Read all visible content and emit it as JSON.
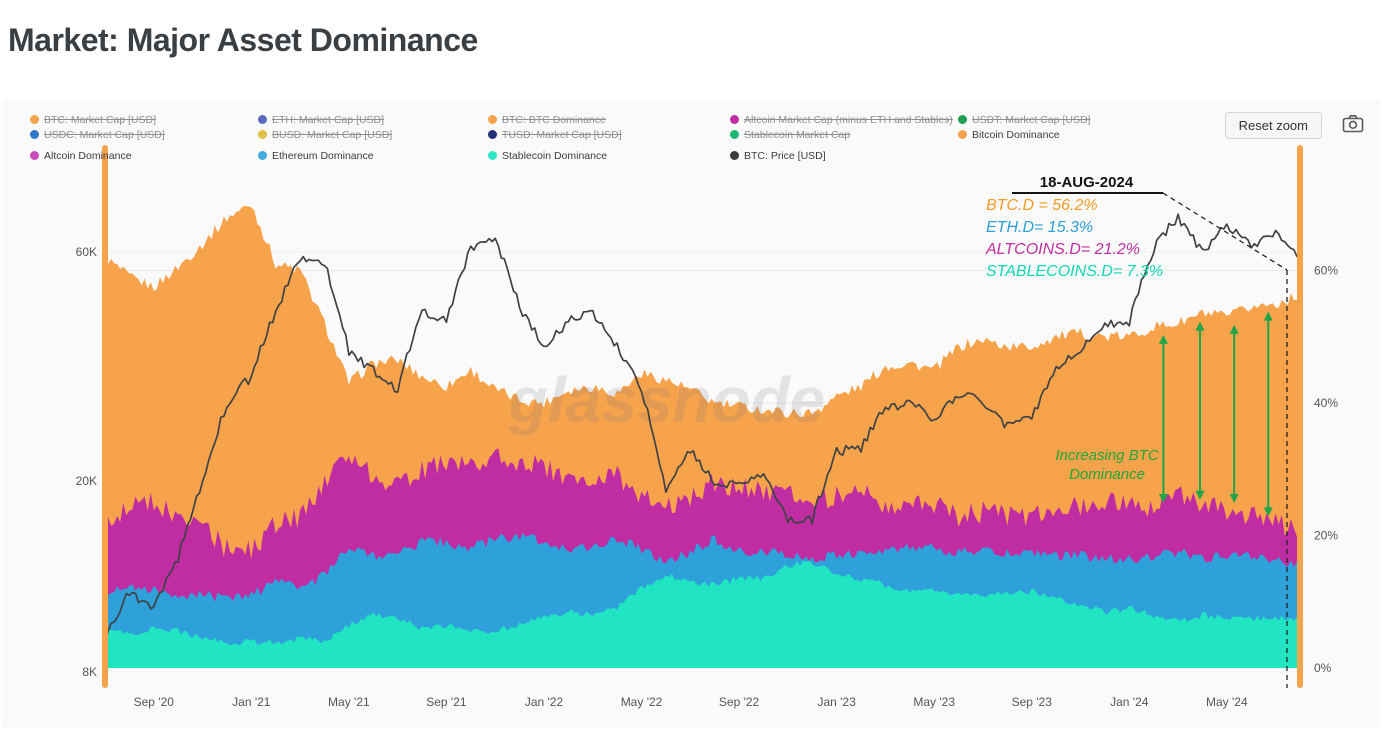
{
  "page": {
    "title": "Market: Major Asset Dominance"
  },
  "toolbar": {
    "reset_zoom_label": "Reset zoom",
    "camera_icon": "camera-export-icon"
  },
  "watermark": "glassnode",
  "legend": {
    "items": [
      {
        "label": "BTC: Market Cap [USD]",
        "color": "#F7A34C",
        "disabled": true,
        "row": 0,
        "col": 0
      },
      {
        "label": "ETH: Market Cap [USD]",
        "color": "#5B6ABF",
        "disabled": true,
        "row": 0,
        "col": 1
      },
      {
        "label": "BTC: BTC Dominance",
        "color": "#F7A34C",
        "disabled": true,
        "row": 0,
        "col": 2
      },
      {
        "label": "Altcoin Market Cap (minus ETH and Stables)",
        "color": "#C02DA2",
        "disabled": true,
        "row": 0,
        "col": 3
      },
      {
        "label": "USDT: Market Cap [USD]",
        "color": "#1F9E54",
        "disabled": true,
        "row": 0,
        "col": 4
      },
      {
        "label": "USDC: Market Cap [USD]",
        "color": "#2D78C8",
        "disabled": true,
        "row": 1,
        "col": 0
      },
      {
        "label": "BUSD: Market Cap [USD]",
        "color": "#E2C044",
        "disabled": true,
        "row": 1,
        "col": 1
      },
      {
        "label": "TUSD: Market Cap [USD]",
        "color": "#232F7A",
        "disabled": true,
        "row": 1,
        "col": 2
      },
      {
        "label": "Stablecoin Market Cap",
        "color": "#1FB871",
        "disabled": true,
        "row": 1,
        "col": 3
      },
      {
        "label": "Bitcoin Dominance",
        "color": "#F7A34C",
        "disabled": false,
        "row": 1,
        "col": 4
      },
      {
        "label": "Altcoin Dominance",
        "color": "#C94CBB",
        "disabled": false,
        "row": 2,
        "col": 0
      },
      {
        "label": "Ethereum Dominance",
        "color": "#41AADF",
        "disabled": false,
        "row": 2,
        "col": 1
      },
      {
        "label": "Stablecoin Dominance",
        "color": "#2FE5C8",
        "disabled": false,
        "row": 2,
        "col": 2
      },
      {
        "label": "BTC: Price [USD]",
        "color": "#3D3D3D",
        "disabled": false,
        "row": 2,
        "col": 3
      }
    ]
  },
  "annotations": {
    "date": "18-AUG-2024",
    "metrics": [
      {
        "label": "BTC.D = 56.2%",
        "color": "#F59A23"
      },
      {
        "label": "ETH.D= 15.3%",
        "color": "#2D9FD8"
      },
      {
        "label": "ALTCOINS.D= 21.2%",
        "color": "#C02DA2"
      },
      {
        "label": "STABLECOINS.D= 7.3%",
        "color": "#12D7B5"
      }
    ],
    "note": "Increasing BTC Dominance",
    "note_color": "#23A638",
    "arrow_color": "#1EA54A"
  },
  "axes": {
    "left": {
      "labels": [
        "60K",
        "20K",
        "8K"
      ],
      "values": [
        60,
        20,
        8
      ]
    },
    "right": {
      "labels": [
        "60%",
        "40%",
        "20%",
        "0%"
      ],
      "values": [
        60,
        40,
        20,
        0
      ]
    },
    "x": {
      "labels": [
        "Sep '20",
        "Jan '21",
        "May '21",
        "Sep '21",
        "Jan '22",
        "May '22",
        "Sep '22",
        "Jan '23",
        "May '23",
        "Sep '23",
        "Jan '24",
        "May '24"
      ]
    }
  },
  "chart_data": {
    "type": "area",
    "title": "Market: Major Asset Dominance",
    "legend_position": "top",
    "grid": true,
    "y_right_axis": {
      "unit": "%",
      "range": [
        0,
        78
      ],
      "ticks": [
        0,
        20,
        40,
        60
      ]
    },
    "y_left_axis": {
      "unit": "USD",
      "scale": "log",
      "ticks_k": [
        8,
        20,
        60
      ]
    },
    "x": [
      "Jul '20",
      "Aug '20",
      "Sep '20",
      "Oct '20",
      "Nov '20",
      "Dec '20",
      "Jan '21",
      "Feb '21",
      "Mar '21",
      "Apr '21",
      "May '21",
      "Jun '21",
      "Jul '21",
      "Aug '21",
      "Sep '21",
      "Oct '21",
      "Nov '21",
      "Dec '21",
      "Jan '22",
      "Feb '22",
      "Mar '22",
      "Apr '22",
      "May '22",
      "Jun '22",
      "Jul '22",
      "Aug '22",
      "Sep '22",
      "Oct '22",
      "Nov '22",
      "Dec '22",
      "Jan '23",
      "Feb '23",
      "Mar '23",
      "Apr '23",
      "May '23",
      "Jun '23",
      "Jul '23",
      "Aug '23",
      "Sep '23",
      "Oct '23",
      "Nov '23",
      "Dec '23",
      "Jan '24",
      "Feb '24",
      "Mar '24",
      "Apr '24",
      "May '24",
      "Jun '24",
      "Jul '24",
      "Aug '24"
    ],
    "series": [
      {
        "name": "Bitcoin Dominance",
        "kind": "area",
        "unit": "%",
        "color": "#F7A34C",
        "values": [
          62,
          59,
          57.5,
          60.5,
          64,
          68,
          70,
          61,
          60,
          52,
          43,
          46,
          46.5,
          44,
          42.5,
          45,
          42,
          40.5,
          40,
          42,
          42.5,
          41.5,
          44.5,
          43.5,
          42,
          40,
          39.5,
          39,
          38.5,
          38.5,
          41,
          42.5,
          45.5,
          46,
          45,
          48.5,
          49.5,
          48.5,
          48.5,
          50,
          50.5,
          50,
          50,
          51.5,
          52,
          53.5,
          53,
          54.5,
          55,
          56.2
        ]
      },
      {
        "name": "Altcoin Dominance",
        "kind": "area",
        "unit": "%",
        "color": "#C02DA2",
        "values": [
          22,
          24,
          25,
          22.5,
          21,
          18,
          17.5,
          22,
          22.5,
          28,
          32,
          29,
          28,
          30,
          31,
          30,
          32.5,
          31,
          30.5,
          28.5,
          28,
          29,
          26,
          24.5,
          26,
          28,
          27.5,
          27,
          26,
          25,
          26,
          26.5,
          24.5,
          25,
          24.5,
          23,
          23.5,
          23,
          23,
          23.5,
          24.5,
          25,
          24.5,
          24,
          26,
          24.5,
          24,
          23,
          22,
          21.2
        ]
      },
      {
        "name": "Ethereum Dominance",
        "kind": "area",
        "unit": "%",
        "color": "#2FA1DA",
        "values": [
          11.5,
          12.5,
          12,
          11,
          11,
          10.5,
          11,
          13,
          12,
          14,
          18,
          17,
          17.5,
          19,
          19,
          18,
          19.5,
          20,
          19,
          18,
          18.5,
          19.5,
          18,
          16,
          17.5,
          19.5,
          17.5,
          17.5,
          17,
          16.5,
          17,
          17,
          17.5,
          18.5,
          18,
          17.5,
          17.5,
          17.5,
          17.5,
          17,
          17,
          16.5,
          16.5,
          17,
          17.5,
          16.5,
          17,
          17,
          16.5,
          15.3
        ]
      },
      {
        "name": "Stablecoin Dominance",
        "kind": "area",
        "unit": "%",
        "color": "#21E4C3",
        "values": [
          5.5,
          5.2,
          6,
          5.5,
          4.5,
          3.8,
          4,
          3.8,
          4.5,
          4,
          6.5,
          8,
          7.5,
          6,
          6.5,
          5.5,
          5.5,
          6.5,
          8,
          8.5,
          8,
          9,
          12,
          14,
          13,
          12.5,
          13.5,
          13.5,
          15.5,
          16,
          14,
          13.5,
          12.5,
          11.5,
          12,
          11,
          11,
          11.5,
          11.5,
          10.5,
          9.5,
          8.5,
          9,
          8,
          7,
          8,
          7.5,
          7.5,
          7.5,
          7.3
        ]
      },
      {
        "name": "BTC: Price [USD]",
        "kind": "line",
        "unit": "K USD",
        "color": "#3F4245",
        "values": [
          9.3,
          11.7,
          10.8,
          13.8,
          19.7,
          29,
          33,
          45,
          58,
          57,
          37,
          34,
          31,
          45,
          43,
          61,
          64,
          46,
          38,
          43,
          45,
          38,
          31,
          19,
          23,
          20,
          19.5,
          20.5,
          16.5,
          16.6,
          23,
          23.5,
          28.5,
          29,
          27,
          30.5,
          29.2,
          26,
          27,
          34.5,
          37.7,
          42.3,
          43,
          61,
          71,
          60,
          68,
          61.5,
          66,
          59
        ]
      }
    ],
    "final_values_on_date": {
      "date": "18-AUG-2024",
      "btc_dominance_pct": 56.2,
      "eth_dominance_pct": 15.3,
      "altcoin_dominance_pct": 21.2,
      "stablecoin_dominance_pct": 7.3
    }
  }
}
